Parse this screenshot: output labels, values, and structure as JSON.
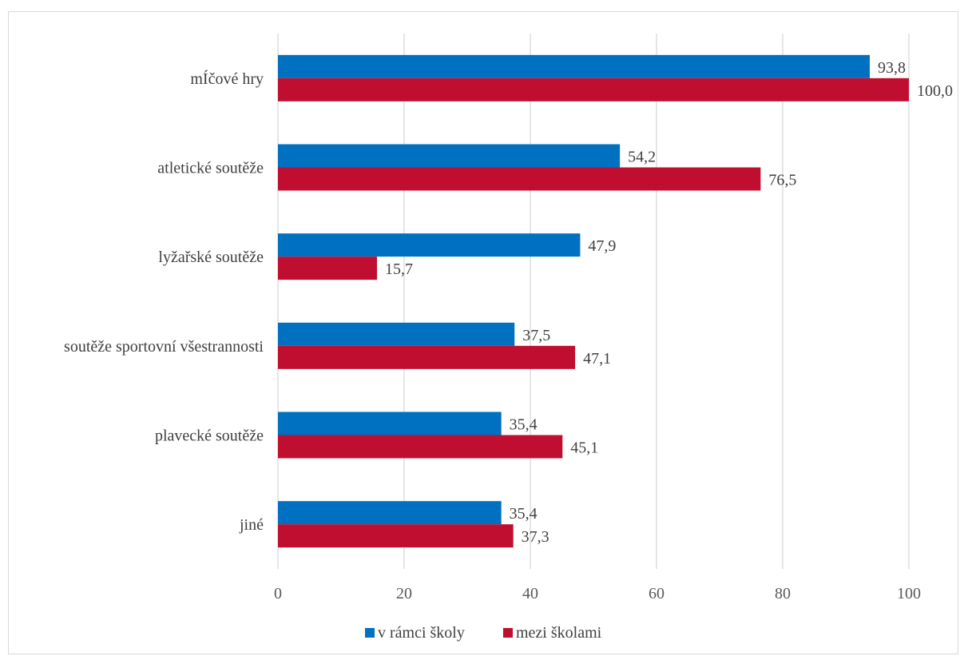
{
  "chart_data": {
    "type": "bar",
    "orientation": "horizontal",
    "categories": [
      "mÍčové hry",
      "atletické soutěže",
      "lyžařské soutěže",
      "soutěže sportovní všestrannosti",
      "plavecké soutěže",
      "jiné"
    ],
    "series": [
      {
        "name": "v rámci školy",
        "color": "#0070C0",
        "values": [
          93.8,
          54.2,
          47.9,
          37.5,
          35.4,
          35.4
        ],
        "labels": [
          "93,8",
          "54,2",
          "47,9",
          "37,5",
          "35,4",
          "35,4"
        ]
      },
      {
        "name": "mezi školami",
        "color": "#C00E30",
        "values": [
          100.0,
          76.5,
          15.7,
          47.1,
          45.1,
          37.3
        ],
        "labels": [
          "100,0",
          "76,5",
          "15,7",
          "47,1",
          "45,1",
          "37,3"
        ]
      }
    ],
    "xlim": [
      0,
      100
    ],
    "xticks": [
      "0",
      "20",
      "40",
      "60",
      "80",
      "100"
    ],
    "grid": true,
    "legend": "bottom"
  }
}
